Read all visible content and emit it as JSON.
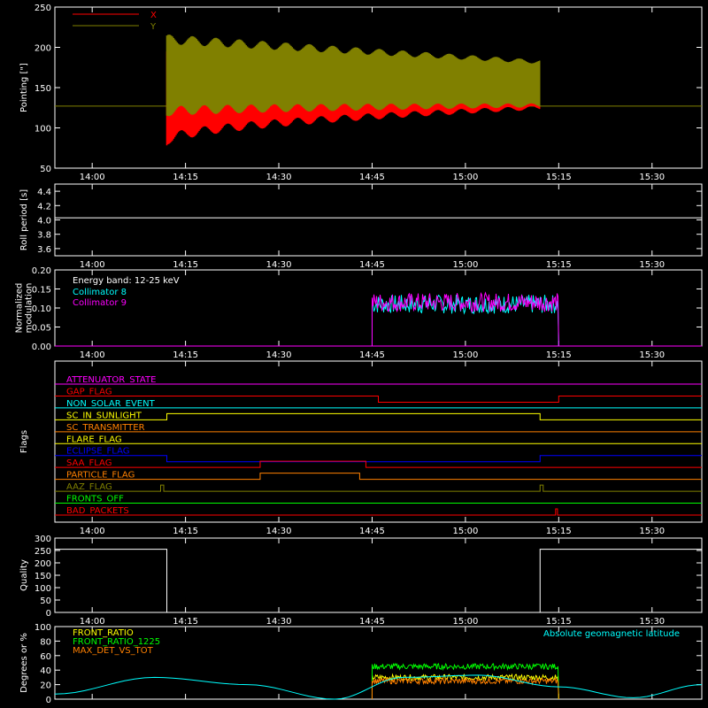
{
  "time_ticks": [
    "14:00",
    "14:15",
    "14:30",
    "14:45",
    "15:00",
    "15:15",
    "15:30"
  ],
  "colors": {
    "bg": "#000000",
    "axis": "#ffffff",
    "red": "#ff0000",
    "olive": "#808000",
    "white": "#ffffff",
    "cyan": "#00ffff",
    "magenta": "#ff00ff",
    "blue": "#0000ff",
    "green": "#00ff00",
    "yellow": "#ffff00",
    "orange": "#ff8000"
  },
  "chart_data": [
    {
      "id": "pointing",
      "type": "line",
      "ylabel": "Pointing [\"]",
      "ylim": [
        50,
        250
      ],
      "yticks": [
        "50",
        "100",
        "150",
        "200",
        "250"
      ],
      "legend": [
        "X",
        "Y"
      ],
      "series": [
        {
          "name": "X",
          "color": "#ff0000",
          "start": "14:12",
          "end": "15:12",
          "low_start": 83,
          "low_end": 125,
          "high_start": 190,
          "high_end": 180
        },
        {
          "name": "Y",
          "color": "#808000",
          "start": "14:12",
          "end": "15:12",
          "low_start": 120,
          "low_end": 128,
          "high_start": 210,
          "high_end": 182
        }
      ],
      "baseline": 127
    },
    {
      "id": "roll",
      "type": "line",
      "ylabel": "Roll period [s]",
      "ylim": [
        3.5,
        4.5
      ],
      "yticks": [
        "3.6",
        "3.8",
        "4.0",
        "4.2",
        "4.4"
      ],
      "series": [
        {
          "name": "roll",
          "color": "#ffffff",
          "value": 4.03
        }
      ]
    },
    {
      "id": "modulation",
      "type": "line",
      "ylabel_lines": [
        "Normalized",
        "modulation"
      ],
      "ylim": [
        0,
        0.2
      ],
      "yticks": [
        "0.00",
        "0.05",
        "0.10",
        "0.15",
        "0.20"
      ],
      "annotation": "Energy band: 12-25 keV",
      "legend": [
        "Collimator 8",
        "Collimator 9"
      ],
      "series": [
        {
          "name": "Collimator 8",
          "color": "#00ffff",
          "start": "14:45",
          "end": "15:15",
          "mean": 0.11
        },
        {
          "name": "Collimator 9",
          "color": "#ff00ff",
          "start": "14:45",
          "end": "15:15",
          "mean": 0.115
        }
      ]
    },
    {
      "id": "flags",
      "type": "line",
      "ylabel": "Flags",
      "flags": [
        {
          "name": "ATTENUATOR_STATE",
          "color": "#ff00ff",
          "steps": []
        },
        {
          "name": "GAP_FLAG",
          "color": "#ff0000",
          "steps": [
            [
              "14:46",
              "15:15",
              1
            ]
          ]
        },
        {
          "name": "NON_SOLAR_EVENT",
          "color": "#00ffff",
          "steps": []
        },
        {
          "name": "SC_IN_SUNLIGHT",
          "color": "#ffff00",
          "steps": [
            [
              "14:12",
              "15:12",
              -1
            ]
          ]
        },
        {
          "name": "SC_TRANSMITTER",
          "color": "#ff8000",
          "steps": []
        },
        {
          "name": "FLARE_FLAG",
          "color": "#ffff00",
          "steps": []
        },
        {
          "name": "ECLIPSE_FLAG",
          "color": "#0000ff",
          "steps": [
            [
              "14:12",
              "15:12",
              1
            ]
          ]
        },
        {
          "name": "SAA_FLAG",
          "color": "#ff0000",
          "steps": [
            [
              "14:27",
              "14:44",
              -1
            ]
          ]
        },
        {
          "name": "PARTICLE_FLAG",
          "color": "#ff8000",
          "steps": [
            [
              "14:27",
              "14:43",
              -1
            ]
          ]
        },
        {
          "name": "AAZ_FLAG",
          "color": "#808000",
          "steps": [
            [
              "14:11",
              "14:11.5",
              -1
            ],
            [
              "15:12",
              "15:12.5",
              -1
            ]
          ]
        },
        {
          "name": "FRONTS_OFF",
          "color": "#00ff00",
          "steps": []
        },
        {
          "name": "BAD_PACKETS",
          "color": "#ff0000",
          "steps": [
            [
              "15:14.5",
              "15:14.8",
              -1
            ]
          ]
        }
      ]
    },
    {
      "id": "quality",
      "type": "line",
      "ylabel": "Quality",
      "ylim": [
        0,
        300
      ],
      "yticks": [
        "0",
        "50",
        "100",
        "150",
        "200",
        "250",
        "300"
      ],
      "series": [
        {
          "name": "quality",
          "color": "#ffffff",
          "segments": [
            [
              "13:54",
              "14:12",
              255
            ],
            [
              "14:12",
              "15:12",
              0
            ],
            [
              "15:12",
              "15:38",
              255
            ]
          ]
        }
      ]
    },
    {
      "id": "ratios",
      "type": "line",
      "ylabel": "Degrees or %",
      "ylim": [
        0,
        100
      ],
      "yticks": [
        "0",
        "20",
        "40",
        "60",
        "80",
        "100"
      ],
      "legend": [
        "FRONT_RATIO",
        "FRONT_RATIO_1225",
        "MAX_DET_VS_TOT"
      ],
      "annotation": "Absolute geomagnetic latitude",
      "series": [
        {
          "name": "FRONT_RATIO",
          "color": "#ffff00",
          "start": "14:45",
          "end": "15:15",
          "mean": 30
        },
        {
          "name": "FRONT_RATIO_1225",
          "color": "#00ff00",
          "start": "14:45",
          "end": "15:15",
          "mean": 45
        },
        {
          "name": "MAX_DET_VS_TOT",
          "color": "#ff8000",
          "start": "14:45",
          "end": "15:15",
          "mean": 25
        },
        {
          "name": "Absolute geomagnetic latitude",
          "color": "#00ffff",
          "points": [
            [
              "13:54",
              7
            ],
            [
              "14:10",
              30
            ],
            [
              "14:25",
              20
            ],
            [
              "14:39",
              0
            ],
            [
              "14:50",
              30
            ],
            [
              "15:02",
              33
            ],
            [
              "15:15",
              17
            ],
            [
              "15:27",
              2
            ],
            [
              "15:38",
              20
            ]
          ]
        }
      ]
    }
  ]
}
